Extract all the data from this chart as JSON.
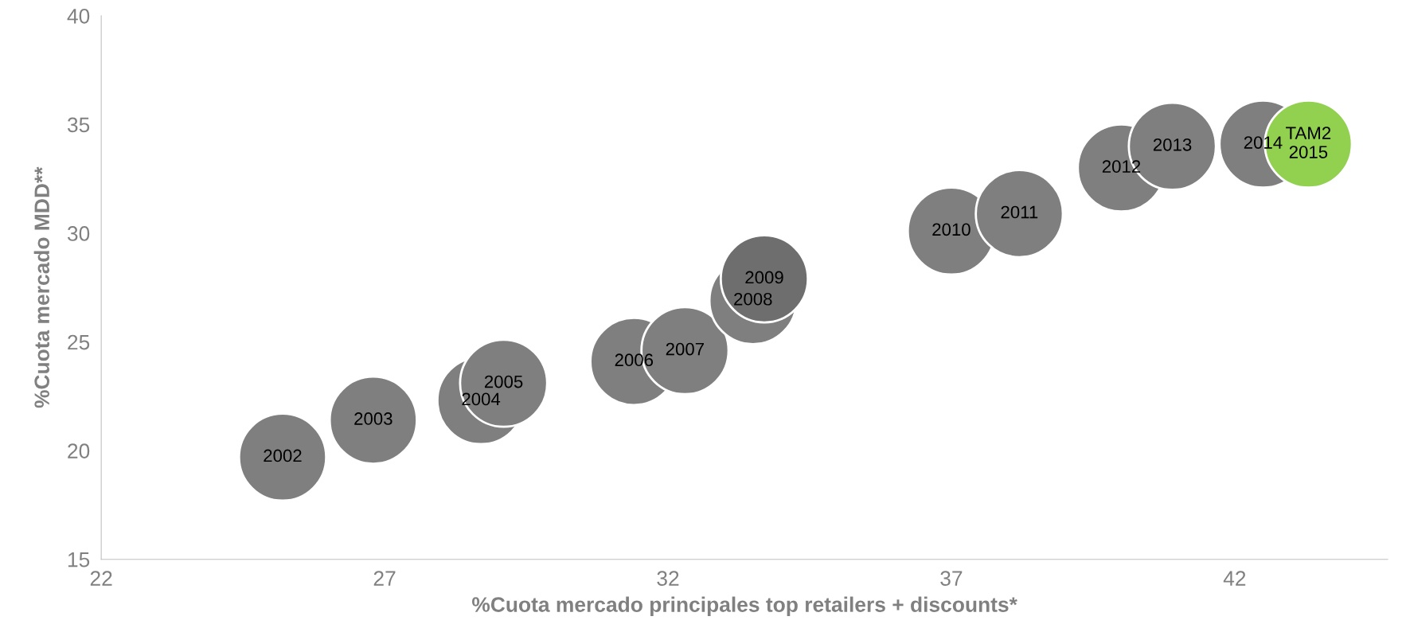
{
  "chart_data": {
    "type": "bubble",
    "xlabel": "%Cuota mercado principales top retailers + discounts*",
    "ylabel": "%Cuota mercado MDD**",
    "x": [
      25.2,
      26.8,
      28.7,
      29.1,
      31.4,
      32.3,
      33.5,
      33.7,
      37.0,
      38.2,
      40.0,
      40.9,
      42.5,
      43.3
    ],
    "values": [
      19.7,
      21.4,
      22.3,
      23.1,
      24.1,
      24.6,
      26.9,
      27.9,
      30.1,
      30.9,
      33.0,
      34.0,
      34.1,
      34.1
    ],
    "sizes": [
      1,
      1,
      1,
      1,
      1,
      1,
      1,
      1,
      1,
      1,
      1,
      1,
      1,
      1
    ],
    "colors": [
      "#7f7f7f",
      "#7f7f7f",
      "#7f7f7f",
      "#7f7f7f",
      "#7f7f7f",
      "#7f7f7f",
      "#7f7f7f",
      "#6e6e6e",
      "#7f7f7f",
      "#7f7f7f",
      "#7f7f7f",
      "#7f7f7f",
      "#7f7f7f",
      "#92d050"
    ],
    "annotations": [
      {
        "text": "2002",
        "x": 25.2,
        "y": 19.7
      },
      {
        "text": "2003",
        "x": 26.8,
        "y": 21.4
      },
      {
        "text": "2004",
        "x": 28.7,
        "y": 22.3
      },
      {
        "text": "2005",
        "x": 29.1,
        "y": 23.1
      },
      {
        "text": "2006",
        "x": 31.4,
        "y": 24.1
      },
      {
        "text": "2007",
        "x": 32.3,
        "y": 24.6
      },
      {
        "text": "2008",
        "x": 33.5,
        "y": 26.9
      },
      {
        "text": "2009",
        "x": 33.7,
        "y": 27.9
      },
      {
        "text": "2010",
        "x": 37.0,
        "y": 30.1
      },
      {
        "text": "2011",
        "x": 38.2,
        "y": 30.9
      },
      {
        "text": "2012",
        "x": 40.0,
        "y": 33.0
      },
      {
        "text": "2013",
        "x": 40.9,
        "y": 34.0
      },
      {
        "text": "2014",
        "x": 42.5,
        "y": 34.1
      },
      {
        "text": "TAM2\n2015",
        "x": 43.3,
        "y": 34.1
      }
    ],
    "xlim": [
      22,
      44.7
    ],
    "xticks": [
      22,
      27,
      32,
      37,
      42
    ],
    "ylim": [
      15,
      40
    ],
    "yticks": [
      15,
      20,
      25,
      30,
      35,
      40
    ],
    "grid": false
  }
}
